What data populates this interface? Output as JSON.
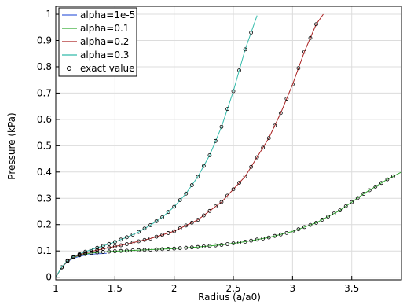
{
  "chart_data": {
    "type": "line",
    "xlabel": "Radius (a/a0)",
    "ylabel": "Pressure (kPa)",
    "xlim": [
      1,
      3.92
    ],
    "ylim": [
      -0.01,
      1.03
    ],
    "x_ticks": [
      1,
      1.5,
      2,
      2.5,
      3,
      3.5
    ],
    "x_tick_labels": [
      "1",
      "1.5",
      "2",
      "2.5",
      "3",
      "3.5"
    ],
    "y_ticks": [
      0,
      0.1,
      0.2,
      0.3,
      0.4,
      0.5,
      0.6,
      0.7,
      0.8,
      0.9,
      1
    ],
    "y_tick_labels": [
      "0",
      "0.1",
      "0.2",
      "0.3",
      "0.4",
      "0.5",
      "0.6",
      "0.7",
      "0.8",
      "0.9",
      "1"
    ],
    "grid": true,
    "legend_position": "top-left",
    "series": [
      {
        "name": "alpha=1e-5",
        "color": "#4466dd",
        "x": [
          1.0,
          1.05,
          1.1,
          1.15,
          1.2,
          1.25,
          1.3,
          1.35,
          1.4,
          1.43
        ],
        "y": [
          0.0,
          0.037,
          0.06,
          0.072,
          0.079,
          0.084,
          0.087,
          0.089,
          0.09,
          0.091
        ]
      },
      {
        "name": "alpha=0.1",
        "color": "#33aa33",
        "x": [
          1.0,
          1.05,
          1.1,
          1.15,
          1.2,
          1.25,
          1.3,
          1.4,
          1.5,
          1.6,
          1.8,
          2.0,
          2.2,
          2.4,
          2.6,
          2.8,
          3.0,
          3.2,
          3.4,
          3.6,
          3.8,
          3.92
        ],
        "y": [
          0.0,
          0.037,
          0.061,
          0.075,
          0.083,
          0.088,
          0.092,
          0.096,
          0.099,
          0.101,
          0.105,
          0.109,
          0.115,
          0.123,
          0.135,
          0.151,
          0.174,
          0.207,
          0.254,
          0.317,
          0.372,
          0.4
        ]
      },
      {
        "name": "alpha=0.2",
        "color": "#aa2222",
        "x": [
          1.0,
          1.05,
          1.1,
          1.15,
          1.2,
          1.25,
          1.3,
          1.4,
          1.5,
          1.6,
          1.8,
          2.0,
          2.2,
          2.4,
          2.6,
          2.8,
          2.9,
          3.0,
          3.1,
          3.2,
          3.26
        ],
        "y": [
          0.0,
          0.037,
          0.062,
          0.076,
          0.085,
          0.092,
          0.098,
          0.108,
          0.117,
          0.126,
          0.147,
          0.175,
          0.218,
          0.286,
          0.383,
          0.529,
          0.624,
          0.733,
          0.857,
          0.962,
          1.0
        ]
      },
      {
        "name": "alpha=0.3",
        "color": "#33bbaa",
        "x": [
          1.0,
          1.05,
          1.1,
          1.15,
          1.2,
          1.25,
          1.3,
          1.4,
          1.5,
          1.6,
          1.7,
          1.8,
          1.9,
          2.0,
          2.1,
          2.2,
          2.3,
          2.4,
          2.5,
          2.6,
          2.65,
          2.7
        ],
        "y": [
          0.0,
          0.038,
          0.064,
          0.078,
          0.088,
          0.097,
          0.105,
          0.119,
          0.134,
          0.152,
          0.172,
          0.198,
          0.228,
          0.268,
          0.318,
          0.382,
          0.464,
          0.572,
          0.707,
          0.866,
          0.93,
          0.995
        ]
      },
      {
        "name": "exact value",
        "style": "markers",
        "x": [],
        "y": []
      }
    ]
  }
}
